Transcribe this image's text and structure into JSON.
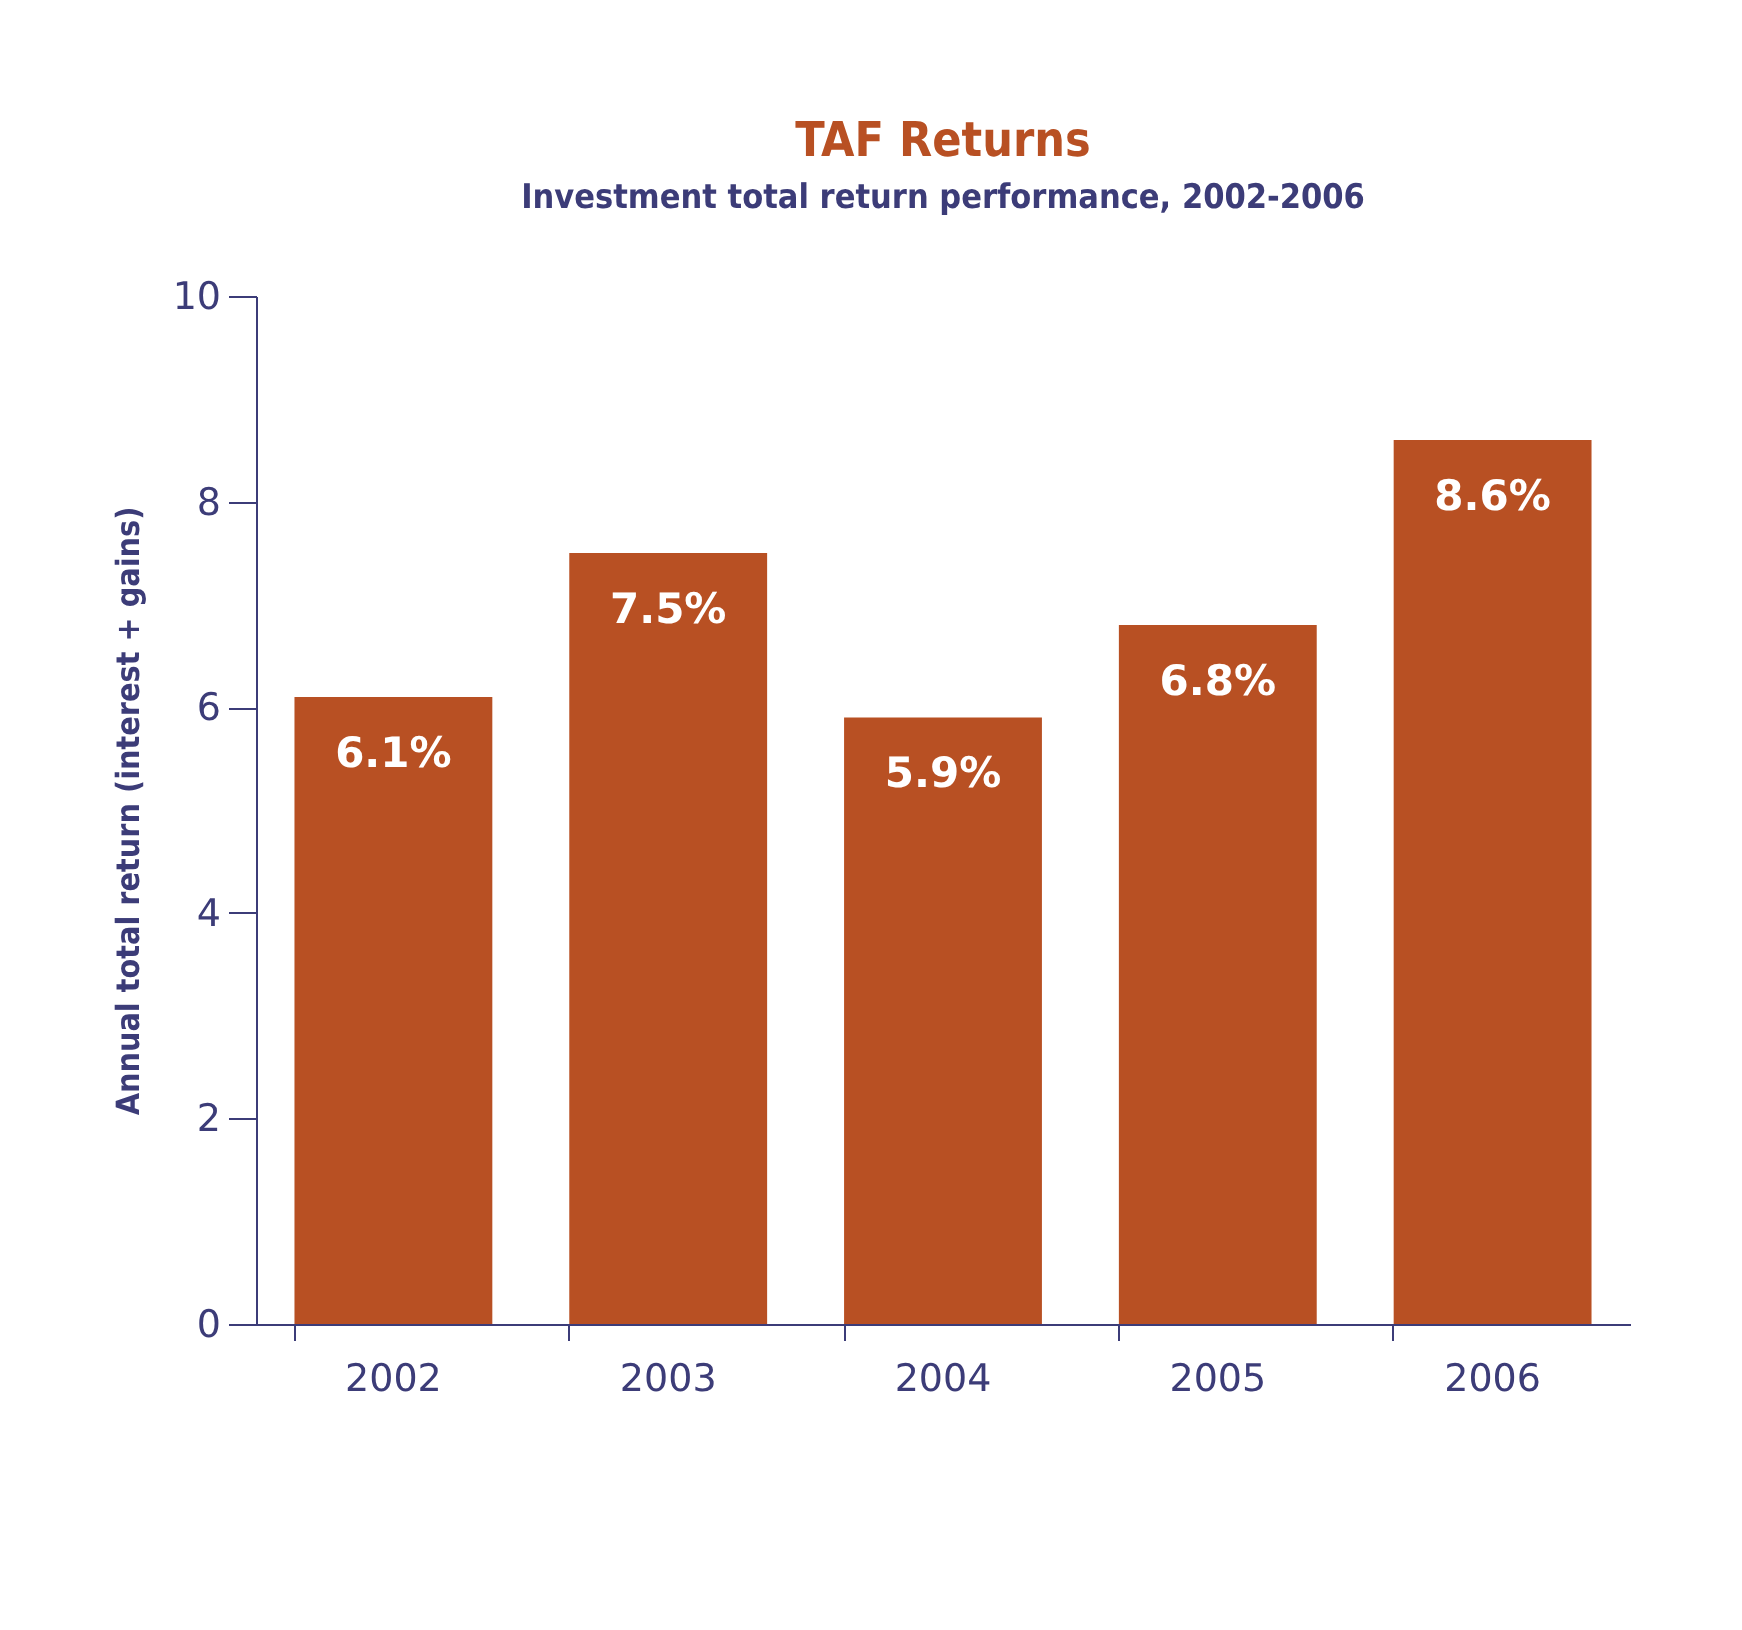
{
  "chart_data": {
    "type": "bar",
    "title": "TAF Returns",
    "subtitle": "Investment total return performance, 2002-2006",
    "ylabel": "Annual total return (interest + gains)",
    "categories": [
      "2002",
      "2003",
      "2004",
      "2005",
      "2006"
    ],
    "values": [
      6.1,
      7.5,
      5.9,
      6.8,
      8.6
    ],
    "value_labels": [
      "6.1%",
      "7.5%",
      "5.9%",
      "6.8%",
      "8.6%"
    ],
    "color": "#b85023",
    "ylim": [
      0,
      10
    ],
    "yticks": [
      0,
      2,
      4,
      6,
      8,
      10
    ],
    "grid": false
  }
}
